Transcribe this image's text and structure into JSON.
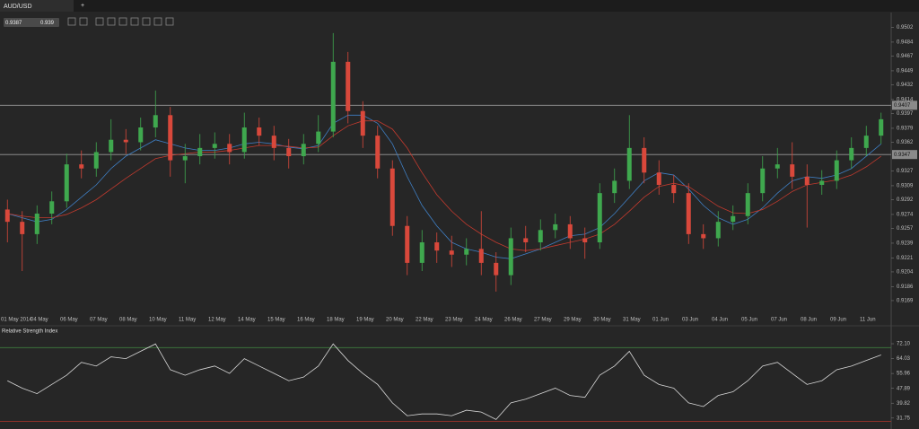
{
  "ui": {
    "tab": "AUD/USD",
    "add": "+",
    "bid": 0.9387,
    "ask": 0.939,
    "panel": "Relative Strength Index"
  },
  "chart_data": [
    {
      "type": "candlestick",
      "categories": [
        "01 May 2014",
        null,
        "04 May",
        null,
        "06 May",
        null,
        "07 May",
        null,
        "08 May",
        null,
        "10 May",
        null,
        "11 May",
        null,
        "12 May",
        null,
        "14 May",
        null,
        "15 May",
        null,
        "16 May",
        null,
        "18 May",
        null,
        "19 May",
        null,
        "20 May",
        null,
        "22 May",
        null,
        "23 May",
        null,
        "24 May",
        null,
        "26 May",
        null,
        "27 May",
        null,
        "29 May",
        null,
        "30 May",
        null,
        "31 May",
        null,
        "01 Jun",
        null,
        "03 Jun",
        null,
        "04 Jun",
        null,
        "05 Jun",
        null,
        "07 Jun",
        null,
        "08 Jun",
        null,
        "09 Jun",
        null,
        "11 Jun",
        null
      ],
      "open": [
        0.928,
        0.9265,
        0.925,
        0.9275,
        0.929,
        0.9335,
        0.933,
        0.935,
        0.9365,
        0.9362,
        0.938,
        0.9395,
        0.934,
        0.9345,
        0.9355,
        0.936,
        0.935,
        0.938,
        0.937,
        0.9355,
        0.9345,
        0.936,
        0.9375,
        0.946,
        0.94,
        0.937,
        0.933,
        0.926,
        0.9215,
        0.924,
        0.923,
        0.9225,
        0.9232,
        0.9215,
        0.92,
        0.9245,
        0.924,
        0.9255,
        0.9262,
        0.9245,
        0.924,
        0.93,
        0.9315,
        0.9355,
        0.9325,
        0.931,
        0.93,
        0.925,
        0.9245,
        0.9265,
        0.9272,
        0.93,
        0.933,
        0.9335,
        0.932,
        0.931,
        0.9315,
        0.934,
        0.9355,
        0.937
      ],
      "high": [
        0.9292,
        0.9278,
        0.9285,
        0.9302,
        0.9348,
        0.9352,
        0.9362,
        0.939,
        0.9378,
        0.9392,
        0.9425,
        0.9405,
        0.936,
        0.9372,
        0.9374,
        0.9372,
        0.9398,
        0.9392,
        0.9382,
        0.9366,
        0.9372,
        0.9395,
        0.9495,
        0.9472,
        0.9412,
        0.9382,
        0.934,
        0.9272,
        0.9255,
        0.9252,
        0.9248,
        0.9245,
        0.9278,
        0.9228,
        0.9258,
        0.926,
        0.9268,
        0.9275,
        0.9272,
        0.9258,
        0.9312,
        0.933,
        0.9395,
        0.9368,
        0.934,
        0.9322,
        0.9312,
        0.9262,
        0.9278,
        0.9285,
        0.9312,
        0.9345,
        0.9355,
        0.9362,
        0.9335,
        0.9328,
        0.9352,
        0.9368,
        0.9382,
        0.9398
      ],
      "low": [
        0.924,
        0.9205,
        0.9238,
        0.9262,
        0.9282,
        0.9318,
        0.932,
        0.934,
        0.9348,
        0.9352,
        0.9368,
        0.932,
        0.9312,
        0.9335,
        0.9342,
        0.9335,
        0.9342,
        0.9358,
        0.934,
        0.933,
        0.9335,
        0.935,
        0.9368,
        0.9385,
        0.9355,
        0.9318,
        0.9248,
        0.92,
        0.9205,
        0.9215,
        0.921,
        0.9212,
        0.92,
        0.918,
        0.9188,
        0.9228,
        0.923,
        0.9245,
        0.9232,
        0.922,
        0.9232,
        0.9288,
        0.9305,
        0.9312,
        0.9298,
        0.9288,
        0.9238,
        0.9232,
        0.9235,
        0.9255,
        0.9262,
        0.929,
        0.9318,
        0.9305,
        0.9258,
        0.9298,
        0.9305,
        0.933,
        0.9345,
        0.936
      ],
      "close": [
        0.9265,
        0.925,
        0.9275,
        0.929,
        0.9335,
        0.933,
        0.935,
        0.9365,
        0.9362,
        0.938,
        0.9395,
        0.934,
        0.9345,
        0.9355,
        0.936,
        0.935,
        0.938,
        0.937,
        0.9355,
        0.9345,
        0.936,
        0.9375,
        0.946,
        0.94,
        0.937,
        0.933,
        0.926,
        0.9215,
        0.924,
        0.923,
        0.9225,
        0.9232,
        0.9215,
        0.92,
        0.9245,
        0.924,
        0.9255,
        0.9262,
        0.9245,
        0.924,
        0.93,
        0.9315,
        0.9355,
        0.9325,
        0.931,
        0.93,
        0.925,
        0.9245,
        0.9265,
        0.9272,
        0.93,
        0.933,
        0.9335,
        0.932,
        0.931,
        0.9315,
        0.934,
        0.9355,
        0.937,
        0.939
      ],
      "up_color": "#3fa84e",
      "down_color": "#d9483b",
      "overlays": [
        {
          "color": "#3f7fc4",
          "values": [
            0.9275,
            0.927,
            0.9265,
            0.9268,
            0.928,
            0.9295,
            0.931,
            0.933,
            0.9345,
            0.9355,
            0.9365,
            0.936,
            0.9355,
            0.9352,
            0.9352,
            0.9355,
            0.936,
            0.9362,
            0.936,
            0.9356,
            0.9354,
            0.9358,
            0.9385,
            0.9395,
            0.9395,
            0.9385,
            0.936,
            0.932,
            0.9285,
            0.926,
            0.924,
            0.9232,
            0.9228,
            0.9222,
            0.922,
            0.9226,
            0.9232,
            0.924,
            0.9248,
            0.925,
            0.9258,
            0.9275,
            0.9295,
            0.9315,
            0.9325,
            0.9322,
            0.9305,
            0.9285,
            0.927,
            0.9262,
            0.9268,
            0.9282,
            0.93,
            0.9315,
            0.932,
            0.9318,
            0.9322,
            0.933,
            0.9345,
            0.936
          ]
        },
        {
          "color": "#c23a2e",
          "values": [
            0.9275,
            0.9272,
            0.927,
            0.927,
            0.9274,
            0.9282,
            0.9292,
            0.9305,
            0.9318,
            0.933,
            0.9342,
            0.9346,
            0.9348,
            0.935,
            0.935,
            0.9352,
            0.9355,
            0.9358,
            0.9358,
            0.9357,
            0.9355,
            0.9356,
            0.937,
            0.9382,
            0.9388,
            0.9388,
            0.9378,
            0.9355,
            0.9325,
            0.9298,
            0.9278,
            0.9262,
            0.925,
            0.924,
            0.9232,
            0.923,
            0.9232,
            0.9236,
            0.924,
            0.9244,
            0.925,
            0.9262,
            0.9278,
            0.9295,
            0.9308,
            0.9312,
            0.9308,
            0.9296,
            0.9284,
            0.9276,
            0.9275,
            0.928,
            0.929,
            0.9302,
            0.931,
            0.9313,
            0.9316,
            0.9322,
            0.9332,
            0.9345
          ]
        }
      ],
      "hlines": [
        0.9407,
        0.9347
      ],
      "ylim": [
        0.9158,
        0.952
      ],
      "yticks": [
        0.9502,
        0.9484,
        0.9467,
        0.9449,
        0.9432,
        0.9414,
        0.9397,
        0.9379,
        0.9362,
        0.9327,
        0.9309,
        0.9292,
        0.9274,
        0.9257,
        0.9239,
        0.9221,
        0.9204,
        0.9186,
        0.9169
      ]
    },
    {
      "type": "line",
      "color": "#d8d8d8",
      "values": [
        52,
        48,
        45,
        50,
        55,
        62,
        60,
        65,
        64,
        68,
        72,
        58,
        55,
        58,
        60,
        56,
        64,
        60,
        56,
        52,
        54,
        60,
        72,
        63,
        56,
        50,
        40,
        33,
        34,
        34,
        33,
        36,
        35,
        31,
        40,
        42,
        45,
        48,
        44,
        43,
        55,
        60,
        68,
        55,
        50,
        48,
        40,
        38,
        44,
        46,
        52,
        60,
        62,
        56,
        50,
        52,
        58,
        60,
        63,
        66
      ],
      "levels": [
        {
          "value": 70,
          "color": "#3e7d3e"
        },
        {
          "value": 30,
          "color": "#b3332b"
        }
      ],
      "ylim": [
        25.8,
        76
      ],
      "yticks": [
        {
          "value": 72.1,
          "label": "72.10"
        },
        {
          "value": 64.03,
          "label": "64.03"
        },
        {
          "value": 55.96,
          "label": "55.96"
        },
        {
          "value": 47.89,
          "label": "47.89"
        },
        {
          "value": 39.82,
          "label": "39.82"
        },
        {
          "value": 31.75,
          "label": "31.75"
        }
      ]
    }
  ]
}
